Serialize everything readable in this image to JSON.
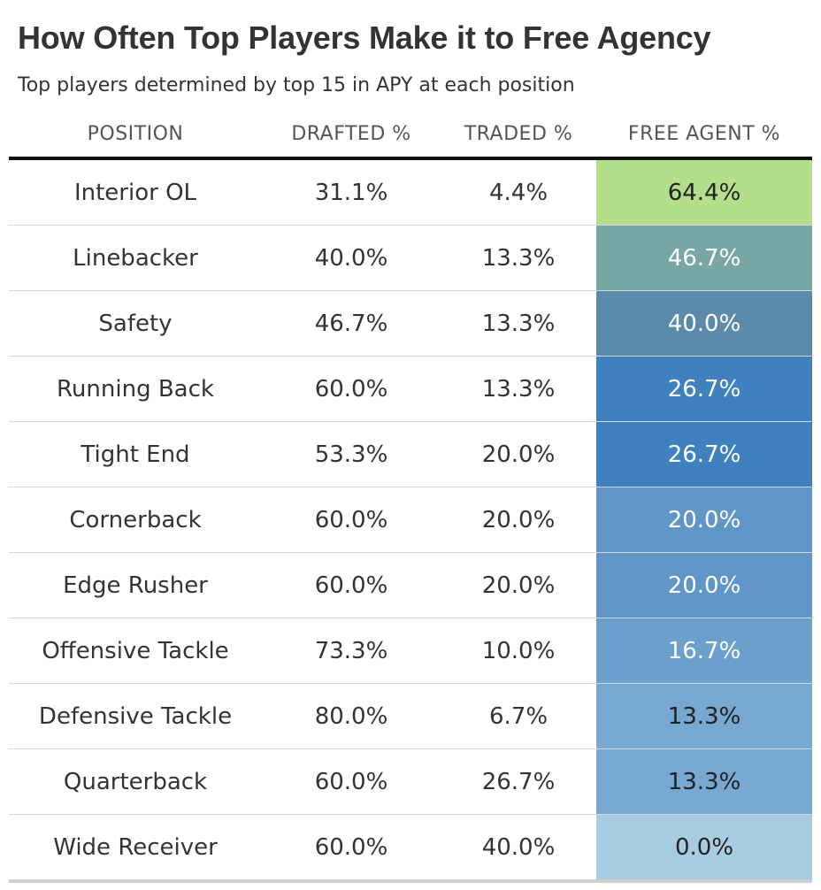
{
  "chart_data": {
    "type": "table",
    "title": "How Often Top Players Make it to Free Agency",
    "subtitle": "Top players determined by top 15 in APY at each position",
    "columns": [
      "POSITION",
      "DRAFTED %",
      "TRADED %",
      "FREE AGENT %"
    ],
    "rows": [
      {
        "position": "Interior OL",
        "drafted": "31.1%",
        "traded": "4.4%",
        "free_agent": "64.4%",
        "free_agent_value": 64.4,
        "fill": "#b3df8a",
        "text_color": "#222222"
      },
      {
        "position": "Linebacker",
        "drafted": "40.0%",
        "traded": "13.3%",
        "free_agent": "46.7%",
        "free_agent_value": 46.7,
        "fill": "#78a6a4",
        "text_color": "#ffffff"
      },
      {
        "position": "Safety",
        "drafted": "46.7%",
        "traded": "13.3%",
        "free_agent": "40.0%",
        "free_agent_value": 40.0,
        "fill": "#5b8aab",
        "text_color": "#ffffff"
      },
      {
        "position": "Running Back",
        "drafted": "60.0%",
        "traded": "13.3%",
        "free_agent": "26.7%",
        "free_agent_value": 26.7,
        "fill": "#3e81be",
        "text_color": "#ffffff"
      },
      {
        "position": "Tight End",
        "drafted": "53.3%",
        "traded": "20.0%",
        "free_agent": "26.7%",
        "free_agent_value": 26.7,
        "fill": "#3e81be",
        "text_color": "#ffffff"
      },
      {
        "position": "Cornerback",
        "drafted": "60.0%",
        "traded": "20.0%",
        "free_agent": "20.0%",
        "free_agent_value": 20.0,
        "fill": "#5f95c7",
        "text_color": "#ffffff"
      },
      {
        "position": "Edge Rusher",
        "drafted": "60.0%",
        "traded": "20.0%",
        "free_agent": "20.0%",
        "free_agent_value": 20.0,
        "fill": "#5f95c7",
        "text_color": "#ffffff"
      },
      {
        "position": "Offensive Tackle",
        "drafted": "73.3%",
        "traded": "10.0%",
        "free_agent": "16.7%",
        "free_agent_value": 16.7,
        "fill": "#6b9fcc",
        "text_color": "#ffffff"
      },
      {
        "position": "Defensive Tackle",
        "drafted": "80.0%",
        "traded": "6.7%",
        "free_agent": "13.3%",
        "free_agent_value": 13.3,
        "fill": "#76a8d2",
        "text_color": "#222222"
      },
      {
        "position": "Quarterback",
        "drafted": "60.0%",
        "traded": "26.7%",
        "free_agent": "13.3%",
        "free_agent_value": 13.3,
        "fill": "#76a8d2",
        "text_color": "#222222"
      },
      {
        "position": "Wide Receiver",
        "drafted": "60.0%",
        "traded": "40.0%",
        "free_agent": "0.0%",
        "free_agent_value": 0.0,
        "fill": "#a7cce2",
        "text_color": "#222222"
      }
    ]
  }
}
